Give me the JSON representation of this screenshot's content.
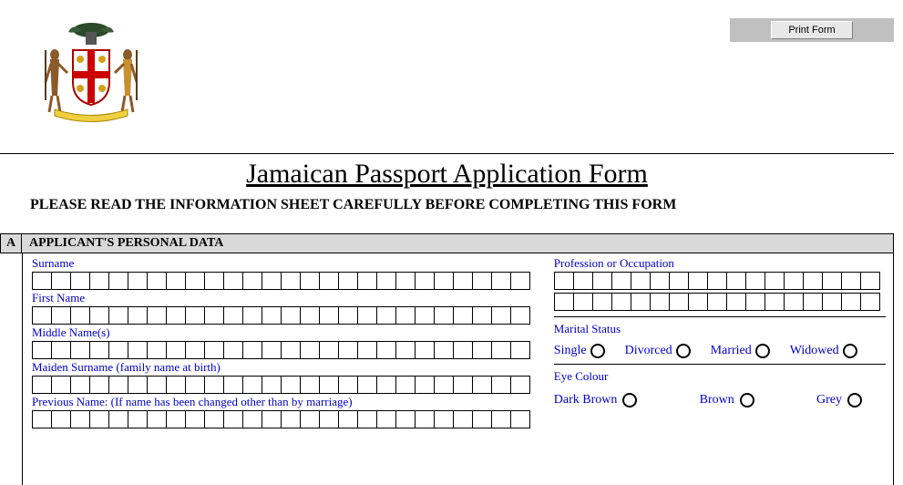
{
  "print_button": {
    "label": "Print Form"
  },
  "title": "Jamaican Passport Application Form",
  "subtitle": "PLEASE READ THE INFORMATION SHEET CAREFULLY BEFORE COMPLETING THIS FORM",
  "section": {
    "letter": "A",
    "title": "APPLICANT'S PERSONAL DATA"
  },
  "left_fields": {
    "surname": {
      "label": "Surname",
      "boxes": 26
    },
    "first_name": {
      "label": "First Name",
      "boxes": 26
    },
    "middle_names": {
      "label": "Middle Name(s)",
      "boxes": 26
    },
    "maiden": {
      "label": "Maiden Surname (family name at birth)",
      "boxes": 26
    },
    "previous": {
      "label": "Previous Name:   (If name has been changed other than by marriage)",
      "boxes": 26
    }
  },
  "right_fields": {
    "profession": {
      "label": "Profession or Occupation",
      "rows": 2,
      "boxes": 17
    },
    "marital": {
      "label": "Marital Status",
      "options": [
        "Single",
        "Divorced",
        "Married",
        "Widowed"
      ]
    },
    "eye": {
      "label": "Eye Colour",
      "options": [
        "Dark Brown",
        "Brown",
        "Grey"
      ]
    }
  },
  "colors": {
    "field_label": "#0000cc",
    "section_bg": "#d9d9d9",
    "border": "#000000",
    "button_bg": "#c0c0c0"
  }
}
